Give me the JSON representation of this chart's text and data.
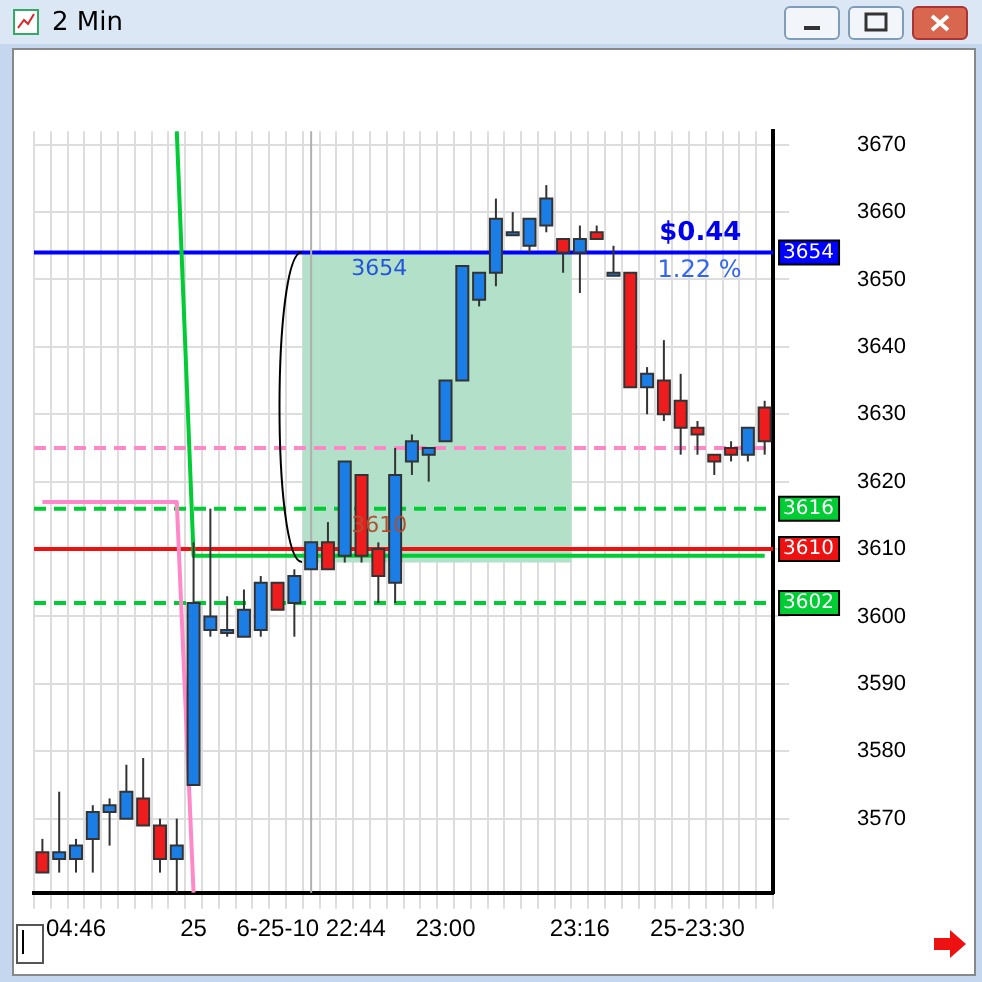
{
  "chart_data": {
    "type": "candlestick",
    "title": "2 Min",
    "categories": [
      null,
      null,
      "04:46",
      null,
      null,
      null,
      null,
      null,
      null,
      "25",
      null,
      null,
      null,
      null,
      null,
      null,
      "6-25-10 22:44",
      null,
      null,
      null,
      null,
      null,
      null,
      null,
      "23:00",
      null,
      null,
      null,
      null,
      null,
      null,
      null,
      "23:16",
      null,
      null,
      null,
      null,
      null,
      null,
      "25-23:30",
      null,
      null,
      null,
      null
    ],
    "ohlc": [
      [
        3565,
        3567,
        3562,
        3562
      ],
      [
        3564,
        3574,
        3562,
        3565
      ],
      [
        3564,
        3567,
        3562,
        3566
      ],
      [
        3567,
        3572,
        3562,
        3571
      ],
      [
        3571,
        3573,
        3566,
        3572
      ],
      [
        3570,
        3578,
        3570,
        3574
      ],
      [
        3573,
        3579,
        3569,
        3569
      ],
      [
        3569,
        3570,
        3562,
        3564
      ],
      [
        3564,
        3570,
        3559,
        3566
      ],
      [
        3575,
        3611,
        3575,
        3602
      ],
      [
        3598,
        3616,
        3597,
        3600
      ],
      [
        3598,
        3603,
        3597,
        3598
      ],
      [
        3597,
        3604,
        3597,
        3601
      ],
      [
        3598,
        3606,
        3597,
        3605
      ],
      [
        3605,
        3605,
        3601,
        3601
      ],
      [
        3602,
        3607,
        3597,
        3606
      ],
      [
        3607,
        3611,
        3607,
        3611
      ],
      [
        3611,
        3614,
        3607,
        3607
      ],
      [
        3609,
        3623,
        3608,
        3623
      ],
      [
        3621,
        3621,
        3608,
        3609
      ],
      [
        3610,
        3611,
        3602,
        3606
      ],
      [
        3605,
        3625,
        3602,
        3621
      ],
      [
        3623,
        3627,
        3621,
        3626
      ],
      [
        3624,
        3625,
        3620,
        3625
      ],
      [
        3626,
        3635,
        3626,
        3635
      ],
      [
        3635,
        3652,
        3635,
        3652
      ],
      [
        3647,
        3651,
        3646,
        3651
      ],
      [
        3651,
        3662,
        3649,
        3659
      ],
      [
        3657,
        3660,
        3657,
        3657
      ],
      [
        3655,
        3659,
        3654,
        3659
      ],
      [
        3658,
        3664,
        3657,
        3662
      ],
      [
        3656,
        3656,
        3651,
        3654
      ],
      [
        3654,
        3658,
        3648,
        3656
      ],
      [
        3657,
        3658,
        3656,
        3656
      ],
      [
        3651,
        3655,
        3651,
        3651
      ],
      [
        3651,
        3651,
        3634,
        3634
      ],
      [
        3634,
        3637,
        3630,
        3636
      ],
      [
        3635,
        3641,
        3629,
        3630
      ],
      [
        3632,
        3636,
        3624,
        3628
      ],
      [
        3628,
        3629,
        3624,
        3627
      ],
      [
        3624,
        3624,
        3621,
        3623
      ],
      [
        3625,
        3626,
        3623,
        3624
      ],
      [
        3624,
        3628,
        3623,
        3628
      ],
      [
        3631,
        3632,
        3624,
        3626
      ]
    ],
    "colors": [
      "#ee1c1c",
      "#1a7ee6",
      "#1a7ee6",
      "#1a7ee6",
      "#1a7ee6",
      "#1a7ee6",
      "#ee1c1c",
      "#ee1c1c",
      "#1a7ee6",
      "#1a7ee6",
      "#1a7ee6",
      "#1a7ee6",
      "#1a7ee6",
      "#1a7ee6",
      "#ee1c1c",
      "#1a7ee6",
      "#1a7ee6",
      "#ee1c1c",
      "#1a7ee6",
      "#ee1c1c",
      "#ee1c1c",
      "#1a7ee6",
      "#1a7ee6",
      "#1a7ee6",
      "#1a7ee6",
      "#1a7ee6",
      "#1a7ee6",
      "#1a7ee6",
      "#1a7ee6",
      "#1a7ee6",
      "#1a7ee6",
      "#ee1c1c",
      "#1a7ee6",
      "#ee1c1c",
      "#1a7ee6",
      "#ee1c1c",
      "#1a7ee6",
      "#ee1c1c",
      "#ee1c1c",
      "#ee1c1c",
      "#ee1c1c",
      "#ee1c1c",
      "#1a7ee6",
      "#ee1c1c"
    ],
    "series": [
      {
        "type": "line",
        "color": "#00cc33",
        "values": [
          null,
          null,
          null,
          null,
          null,
          null,
          null,
          null,
          3672,
          3609,
          3609,
          3609,
          3609,
          3609,
          3609,
          3609,
          3609,
          3609,
          3609,
          3609,
          3609,
          3609,
          3609,
          3609,
          3609,
          3609,
          3609,
          3609,
          3609,
          3609,
          3609,
          3609,
          3609,
          3609,
          3609,
          3609,
          3609,
          3609,
          3609,
          3609,
          3609,
          3609,
          3609,
          3609
        ]
      },
      {
        "type": "line",
        "color": "#ff88c8",
        "values": [
          3617,
          3617,
          3617,
          3617,
          3617,
          3617,
          3617,
          3617,
          3617,
          3559,
          null,
          null,
          null,
          null,
          null,
          null,
          null,
          null,
          null,
          null,
          null,
          null,
          null,
          null,
          null,
          null,
          null,
          null,
          null,
          null,
          null,
          null,
          null,
          null,
          null,
          null,
          null,
          null,
          null,
          null,
          null,
          null,
          null,
          null
        ]
      }
    ],
    "ylim": [
      3559,
      3672
    ],
    "yticks": [
      3570,
      3580,
      3590,
      3600,
      3610,
      3620,
      3630,
      3640,
      3650,
      3660,
      3670
    ],
    "ref_lines": [
      {
        "axis": "y",
        "value": 3654,
        "label": "3654",
        "color": "#0000ff",
        "line_style": "solid"
      },
      {
        "axis": "y",
        "value": 3616,
        "label": "3616",
        "color": "#00cc33",
        "line_style": "dashed"
      },
      {
        "axis": "y",
        "value": 3610,
        "label": "3610",
        "color": "#ee1111",
        "line_style": "solid"
      },
      {
        "axis": "y",
        "value": 3602,
        "label": "3602",
        "color": "#00cc33",
        "line_style": "dashed"
      },
      {
        "axis": "y",
        "value": 3625,
        "label": null,
        "color": "#ff88c8",
        "line_style": "dashed"
      },
      {
        "axis": "x",
        "value": "6-25-10 22:44",
        "label": null,
        "color": "#b0b0b0",
        "line_style": "solid"
      }
    ],
    "bands": [
      {
        "axis": "y",
        "from": 3608,
        "to": 3654,
        "color": "#b2e0c8"
      }
    ],
    "annotations": [
      {
        "text": "3654",
        "x": "6-25-10 22:44",
        "y": 3654
      },
      {
        "text": "3610",
        "x": "6-25-10 22:44",
        "y": 3610
      },
      {
        "text": "$0.44",
        "x": "25-23:30",
        "y": 3654
      },
      {
        "text": "1.22 %",
        "x": "25-23:30",
        "y": 3654
      }
    ],
    "grid": true,
    "legend": false
  }
}
